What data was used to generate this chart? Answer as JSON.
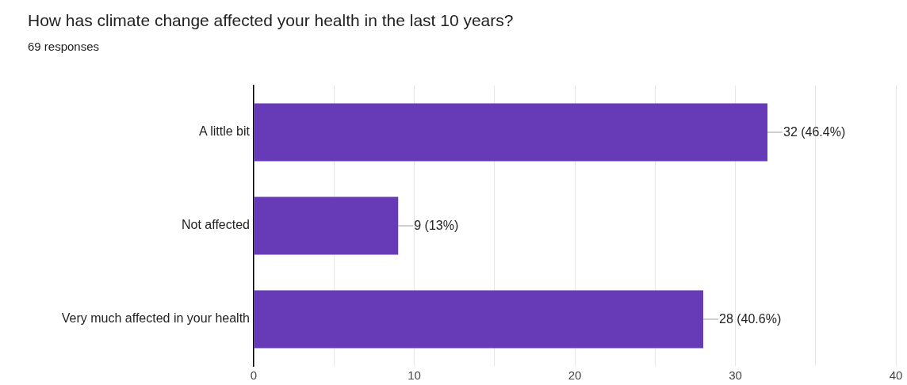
{
  "chart_data": {
    "type": "bar",
    "orientation": "horizontal",
    "title": "How has climate change affected your health in the last 10 years?",
    "subtitle": "69 responses",
    "categories": [
      "A little bit",
      "Not affected",
      "Very much affected in your health"
    ],
    "values": [
      32,
      9,
      28
    ],
    "value_labels": [
      "32 (46.4%)",
      "9 (13%)",
      "28 (40.6%)"
    ],
    "color": "#673ab7",
    "xlim": [
      0,
      40
    ],
    "xticks": [
      0,
      {
        "value": 5,
        "label": null
      },
      10,
      {
        "value": 15,
        "label": null
      },
      20,
      {
        "value": 25,
        "label": null
      },
      30,
      {
        "value": 35,
        "label": null
      },
      40
    ],
    "grid": "x"
  }
}
